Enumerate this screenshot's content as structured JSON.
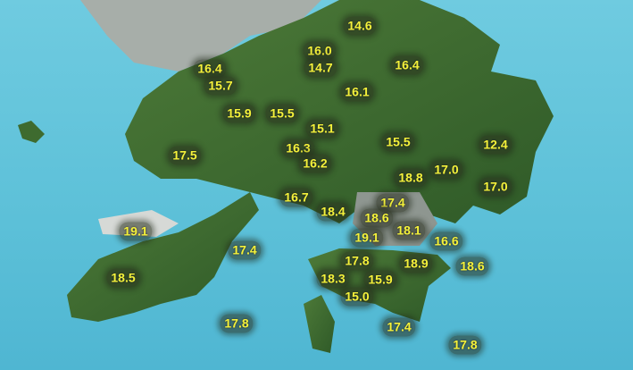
{
  "map": {
    "colors": {
      "sea": "#5ec3da",
      "land": "#3e6b2f",
      "urban": "#a9b0ab",
      "label_text": "#f4f23a"
    },
    "temperature_labels": [
      "14.6",
      "16.0",
      "14.7",
      "16.4",
      "16.4",
      "15.7",
      "16.1",
      "15.9",
      "15.5",
      "15.1",
      "15.5",
      "12.4",
      "16.3",
      "16.2",
      "17.5",
      "18.8",
      "17.0",
      "17.0",
      "16.7",
      "17.4",
      "18.4",
      "18.6",
      "19.1",
      "18.1",
      "19.1",
      "17.4",
      "16.6",
      "17.8",
      "18.9",
      "18.6",
      "18.5",
      "18.3",
      "15.9",
      "15.0",
      "17.8",
      "17.4",
      "17.8"
    ]
  }
}
